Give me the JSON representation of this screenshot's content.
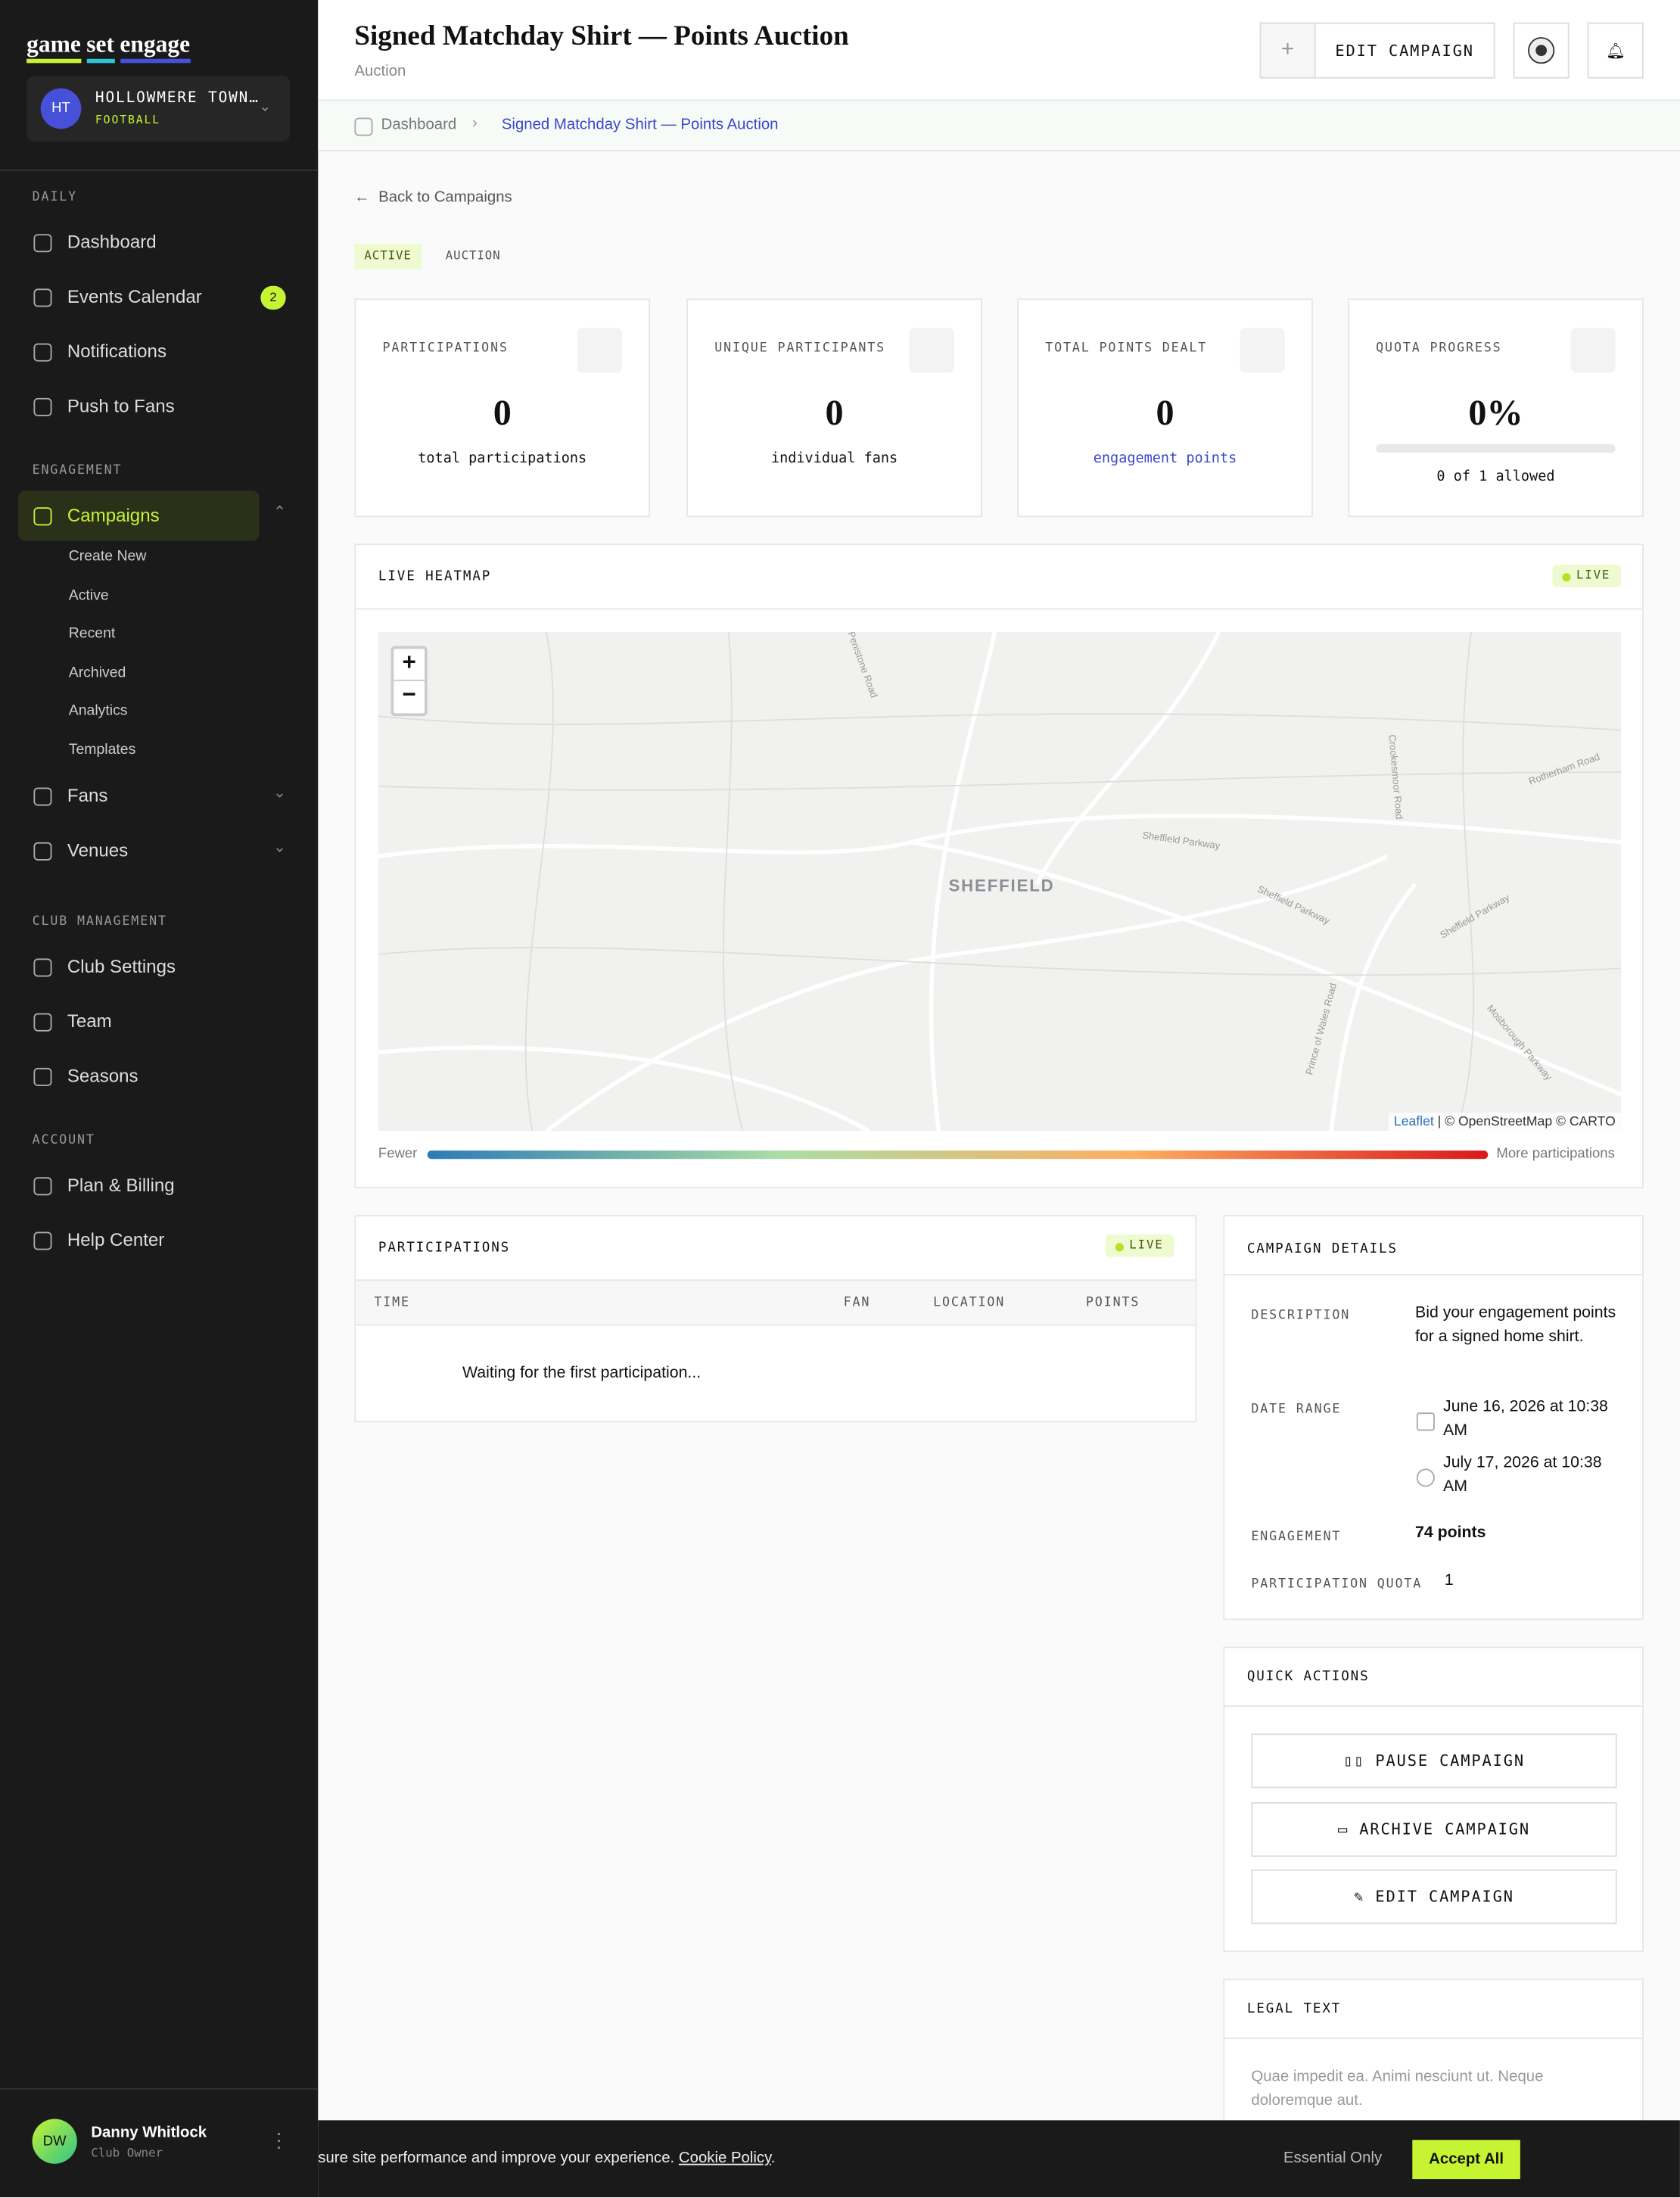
{
  "brand": [
    "game",
    "set",
    "engage"
  ],
  "club": {
    "initials": "HT",
    "name": "HOLLOWMERE TOWN…",
    "sport": "FOOTBALL"
  },
  "nav": [
    {
      "title": "DAILY",
      "items": [
        {
          "label": "Dashboard"
        },
        {
          "label": "Events Calendar",
          "badge": 2
        },
        {
          "label": "Notifications"
        },
        {
          "label": "Push to Fans"
        }
      ]
    },
    {
      "title": "ENGAGEMENT",
      "items": [
        {
          "label": "Campaigns",
          "children": [
            "Create New",
            "Active",
            "Recent",
            "Archived",
            "Analytics",
            "Templates"
          ]
        },
        {
          "label": "Fans"
        },
        {
          "label": "Venues"
        }
      ]
    },
    {
      "title": "CLUB MANAGEMENT",
      "items": [
        {
          "label": "Club Settings"
        },
        {
          "label": "Team"
        },
        {
          "label": "Seasons"
        }
      ]
    },
    {
      "title": "ACCOUNT",
      "items": [
        {
          "label": "Plan & Billing"
        },
        {
          "label": "Help Center"
        }
      ]
    }
  ],
  "user": {
    "initials": "DW",
    "name": "Danny Whitlock",
    "role": "Club Owner"
  },
  "header": {
    "title": "Signed Matchday Shirt — Points Auction",
    "subtitle": "Auction",
    "edit_button": "EDIT CAMPAIGN"
  },
  "breadcrumb": [
    "Dashboard",
    "Signed Matchday Shirt — Points Auction"
  ],
  "back_link": "Back to Campaigns",
  "tags": [
    "ACTIVE",
    "AUCTION"
  ],
  "stats": [
    {
      "label": "PARTICIPATIONS",
      "value": "0",
      "caption": "total participations"
    },
    {
      "label": "UNIQUE PARTICIPANTS",
      "value": "0",
      "caption": "individual fans"
    },
    {
      "label": "TOTAL POINTS DEALT",
      "value": "0",
      "caption": "engagement points"
    },
    {
      "label": "QUOTA PROGRESS",
      "value": "0%",
      "caption": "0 of 1 allowed"
    }
  ],
  "heatmap": {
    "title": "LIVE HEATMAP",
    "live": "LIVE",
    "zoom_in": "+",
    "zoom_out": "−",
    "city": "SHEFFIELD",
    "roads": [
      "Sheffield Parkway",
      "Sheffield Parkway",
      "Sheffield Parkway",
      "Prince of Wales Road",
      "Mosborough Parkway",
      "Crookesmoor Road",
      "Rotherham Road",
      "Penistone Road"
    ],
    "attribution": {
      "leaflet": "Leaflet",
      "rest": "| © OpenStreetMap © CARTO"
    },
    "legend_low": "Fewer",
    "legend_high": "More participations"
  },
  "participations": {
    "title": "PARTICIPATIONS",
    "live": "LIVE",
    "columns": [
      "TIME",
      "FAN",
      "LOCATION",
      "POINTS"
    ],
    "empty": "Waiting for the first participation..."
  },
  "details": {
    "title": "CAMPAIGN DETAILS",
    "description": {
      "label": "DESCRIPTION",
      "value": "Bid your engagement points for a signed home shirt."
    },
    "date_range": {
      "label": "DATE RANGE",
      "start": "June 16, 2026 at 10:38 AM",
      "end": "July 17, 2026 at 10:38 AM"
    },
    "engagement": {
      "label": "ENGAGEMENT",
      "value": "74 points"
    },
    "quota": {
      "label": "PARTICIPATION QUOTA",
      "value": "1"
    }
  },
  "quick_actions": {
    "title": "QUICK ACTIONS",
    "buttons": [
      "PAUSE CAMPAIGN",
      "ARCHIVE CAMPAIGN",
      "EDIT CAMPAIGN"
    ]
  },
  "legal": {
    "title": "LEGAL TEXT",
    "text": "Quae impedit ea. Animi nesciunt ut. Neque doloremque aut."
  },
  "cookie": {
    "text": "sure site performance and improve your experience.",
    "link": "Cookie Policy",
    "after": ".",
    "essential": "Essential Only",
    "accept": "Accept All"
  }
}
